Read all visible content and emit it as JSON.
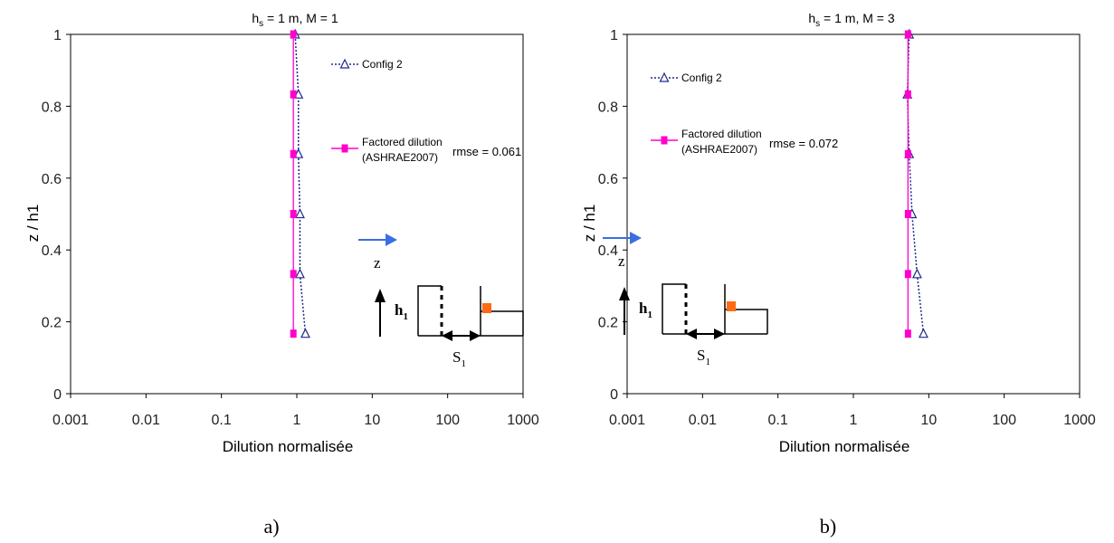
{
  "chart_data": [
    {
      "type": "line",
      "title": "h_s = 1 m, M = 1",
      "title_parts": {
        "base": "h",
        "sub": "s",
        "rest": " = 1 m, M = 1"
      },
      "xlabel": "Dilution normalisée",
      "ylabel": "z  / h1",
      "x_scale": "log",
      "xlim": [
        0.001,
        1000
      ],
      "ylim": [
        0,
        1
      ],
      "x_ticks": [
        "0.001",
        "0.01",
        "0.1",
        "1",
        "10",
        "100",
        "1000"
      ],
      "y_ticks": [
        "0",
        "0.2",
        "0.4",
        "0.6",
        "0.8",
        "1"
      ],
      "series": [
        {
          "name": "Config 2",
          "color": "#1f2a8a",
          "marker": "triangle",
          "style": "dotted",
          "points": [
            [
              1.3,
              0.167
            ],
            [
              1.1,
              0.333
            ],
            [
              1.1,
              0.5
            ],
            [
              1.05,
              0.667
            ],
            [
              1.05,
              0.833
            ],
            [
              0.95,
              1.0
            ]
          ]
        },
        {
          "name": "Factored dilution (ASHRAE2007)",
          "name_lines": [
            "Factored dilution",
            "(ASHRAE2007)"
          ],
          "color": "#ff00cc",
          "marker": "square",
          "style": "solid",
          "points": [
            [
              0.9,
              0.167
            ],
            [
              0.9,
              0.333
            ],
            [
              0.9,
              0.5
            ],
            [
              0.9,
              0.667
            ],
            [
              0.9,
              0.833
            ],
            [
              0.9,
              1.0
            ]
          ]
        }
      ],
      "annotation": "rmse = 0.061",
      "inset": {
        "z_label": "z",
        "h_label": "h",
        "h_sub": "1",
        "s_label": "S",
        "s_sub": "1"
      },
      "caption": "a)"
    },
    {
      "type": "line",
      "title": "h_s = 1 m, M = 3",
      "title_parts": {
        "base": "h",
        "sub": "s",
        "rest": " = 1 m, M = 3"
      },
      "xlabel": "Dilution normalisée",
      "ylabel": "z  / h1",
      "x_scale": "log",
      "xlim": [
        0.001,
        1000
      ],
      "ylim": [
        0,
        1
      ],
      "x_ticks": [
        "0.001",
        "0.01",
        "0.1",
        "1",
        "10",
        "100",
        "1000"
      ],
      "y_ticks": [
        "0",
        "0.2",
        "0.4",
        "0.6",
        "0.8",
        "1"
      ],
      "series": [
        {
          "name": "Config 2",
          "color": "#1f2a8a",
          "marker": "triangle",
          "style": "dotted",
          "points": [
            [
              8.5,
              0.167
            ],
            [
              7.0,
              0.333
            ],
            [
              6.0,
              0.5
            ],
            [
              5.5,
              0.667
            ],
            [
              5.2,
              0.833
            ],
            [
              5.5,
              1.0
            ]
          ]
        },
        {
          "name": "Factored dilution (ASHRAE2007)",
          "name_lines": [
            "Factored dilution",
            "(ASHRAE2007)"
          ],
          "color": "#ff00cc",
          "marker": "square",
          "style": "solid",
          "points": [
            [
              5.3,
              0.167
            ],
            [
              5.3,
              0.333
            ],
            [
              5.3,
              0.5
            ],
            [
              5.3,
              0.667
            ],
            [
              5.3,
              0.833
            ],
            [
              5.3,
              1.0
            ]
          ]
        }
      ],
      "annotation": "rmse = 0.072",
      "inset": {
        "z_label": "z",
        "h_label": "h",
        "h_sub": "1",
        "s_label": "S",
        "s_sub": "1"
      },
      "caption": "b)"
    }
  ]
}
